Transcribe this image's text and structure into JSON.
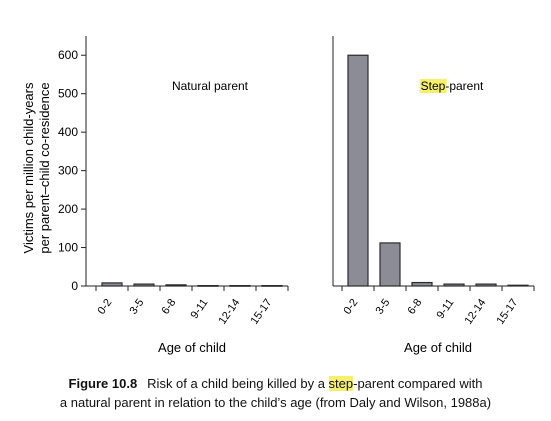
{
  "figure": {
    "ylabel_line1": "Victims per million child-years",
    "ylabel_line2": "per parent–child co-residence"
  },
  "chart_data": [
    {
      "type": "bar",
      "panel_label": "Natural parent",
      "panel_label_highlight": "",
      "xlabel": "Age of child",
      "categories": [
        "0-2",
        "3-5",
        "6-8",
        "9-11",
        "12-14",
        "15-17"
      ],
      "values": [
        8,
        5,
        3,
        1,
        1,
        1
      ],
      "ylim": [
        0,
        650
      ],
      "yticks": [
        0,
        100,
        200,
        300,
        400,
        500,
        600
      ],
      "grid": false
    },
    {
      "type": "bar",
      "panel_label": "-parent",
      "panel_label_highlight": "Step",
      "xlabel": "Age of child",
      "categories": [
        "0-2",
        "3-5",
        "6-8",
        "9-11",
        "12-14",
        "15-17"
      ],
      "values": [
        600,
        112,
        9,
        5,
        5,
        2
      ],
      "ylim": [
        0,
        650
      ],
      "grid": false
    }
  ],
  "caption": {
    "label": "Figure 10.8",
    "text_before": "Risk of a child being killed by a ",
    "highlight": "step",
    "text_after": "-parent compared with",
    "line2": "a natural parent in relation to the child’s age (from Daly and Wilson, 1988a)"
  },
  "colors": {
    "bar_fill": "#8b8c95",
    "bar_stroke": "#2b2b2b",
    "axis": "#222222",
    "highlight": "#f6f06a"
  }
}
